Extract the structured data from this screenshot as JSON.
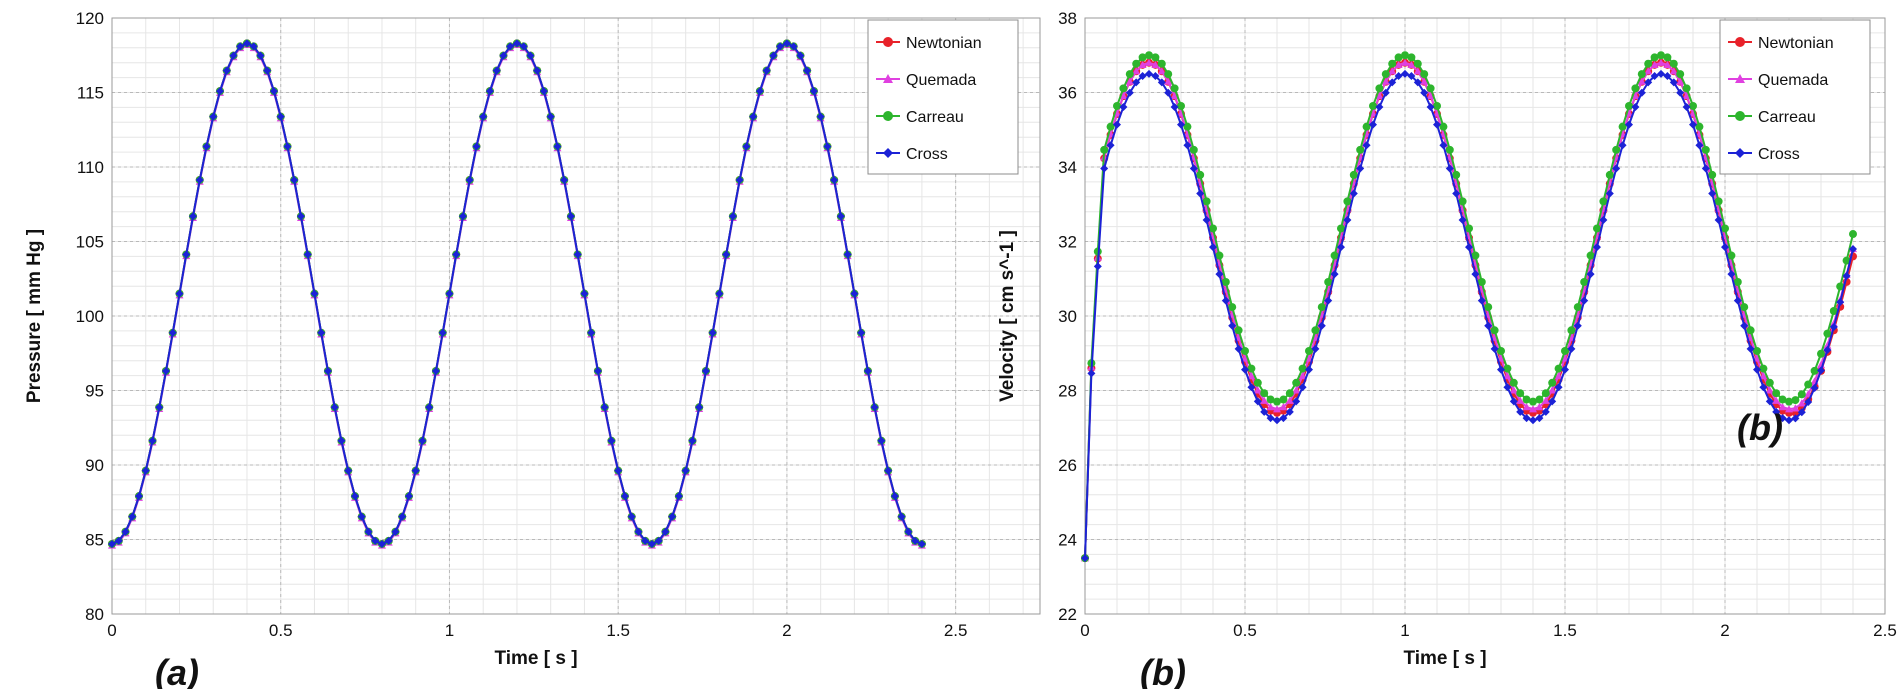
{
  "chart_data": [
    {
      "type": "line",
      "panel_label": "(a)",
      "xlabel": "Time [ s ]",
      "ylabel": "Pressure [ mm Hg ]",
      "xlim": [
        0,
        2.75
      ],
      "ylim": [
        80,
        120
      ],
      "xticks": [
        0,
        0.5,
        1,
        1.5,
        2,
        2.5
      ],
      "xtick_labels": [
        "0",
        "0.5",
        "1",
        "1.5",
        "2",
        "2.5"
      ],
      "yticks": [
        80,
        85,
        90,
        95,
        100,
        105,
        110,
        115,
        120
      ],
      "ytick_labels": [
        "80",
        "85",
        "90",
        "95",
        "100",
        "105",
        "110",
        "115",
        "120"
      ],
      "grid": true,
      "legend_position": "top-right",
      "waveform": {
        "form": "cosine",
        "period": 0.8,
        "t_start": 0,
        "t_end": 2.4,
        "sample_step": 0.02
      },
      "series": [
        {
          "name": "Newtonian",
          "color": "#e8222a",
          "marker": "circle",
          "min": 84.7,
          "max": 118.3,
          "peak_times": [
            0.4,
            1.2,
            2.0
          ],
          "trough_times": [
            0.8,
            1.6
          ]
        },
        {
          "name": "Quemada",
          "color": "#e040e0",
          "marker": "triangle",
          "min": 84.6,
          "max": 118.2,
          "peak_times": [
            0.4,
            1.2,
            2.0
          ],
          "trough_times": [
            0.8,
            1.6
          ]
        },
        {
          "name": "Carreau",
          "color": "#2db52d",
          "marker": "circle",
          "min": 84.7,
          "max": 118.3,
          "peak_times": [
            0.4,
            1.2,
            2.0
          ],
          "trough_times": [
            0.8,
            1.6
          ]
        },
        {
          "name": "Cross",
          "color": "#1c22d6",
          "marker": "diamond",
          "min": 84.7,
          "max": 118.3,
          "peak_times": [
            0.4,
            1.2,
            2.0
          ],
          "trough_times": [
            0.8,
            1.6
          ]
        }
      ]
    },
    {
      "type": "line",
      "panel_label": "(b)",
      "annotation": "(b)",
      "xlabel": "Time [ s ]",
      "ylabel": "Velocity [ cm s^-1 ]",
      "xlim": [
        0,
        2.5
      ],
      "ylim": [
        22,
        38
      ],
      "xticks": [
        0,
        0.5,
        1,
        1.5,
        2,
        2.5
      ],
      "xtick_labels": [
        "0",
        "0.5",
        "1",
        "1.5",
        "2",
        "2.5"
      ],
      "yticks": [
        22,
        24,
        26,
        28,
        30,
        32,
        34,
        36,
        38
      ],
      "ytick_labels": [
        "22",
        "24",
        "26",
        "28",
        "30",
        "32",
        "34",
        "36",
        "38"
      ],
      "grid": true,
      "legend_position": "top-right",
      "start_point": {
        "t": 0,
        "value": 23.5
      },
      "waveform": {
        "form": "cosine",
        "period": 0.8,
        "t_start": 0,
        "t_end": 2.4,
        "sample_step": 0.02
      },
      "series": [
        {
          "name": "Newtonian",
          "color": "#e8222a",
          "marker": "circle",
          "min": 27.4,
          "max": 36.8,
          "end_value": 31.6,
          "peak_times": [
            0.2,
            1.0,
            1.8
          ],
          "trough_times": [
            0.6,
            1.4,
            2.2
          ]
        },
        {
          "name": "Quemada",
          "color": "#e040e0",
          "marker": "triangle",
          "min": 27.5,
          "max": 36.8,
          "end_value": 31.8,
          "peak_times": [
            0.2,
            1.0,
            1.8
          ],
          "trough_times": [
            0.6,
            1.4,
            2.2
          ]
        },
        {
          "name": "Carreau",
          "color": "#2db52d",
          "marker": "circle",
          "min": 27.7,
          "max": 37.0,
          "end_value": 32.2,
          "peak_times": [
            0.2,
            1.0,
            1.8
          ],
          "trough_times": [
            0.6,
            1.4,
            2.2
          ]
        },
        {
          "name": "Cross",
          "color": "#1c22d6",
          "marker": "diamond",
          "min": 27.2,
          "max": 36.5,
          "end_value": 31.8,
          "peak_times": [
            0.2,
            1.0,
            1.8
          ],
          "trough_times": [
            0.6,
            1.4,
            2.2
          ]
        }
      ]
    }
  ]
}
